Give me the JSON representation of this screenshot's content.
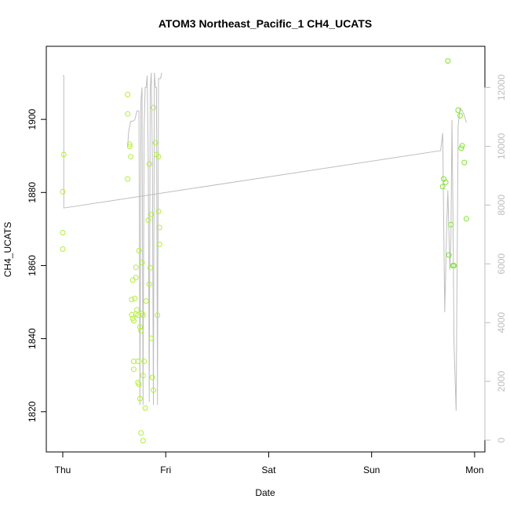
{
  "chart_data": {
    "type": "scatter",
    "title": "ATOM3 Northeast_Pacific_1 CH4_UCATS",
    "xlabel": "Date",
    "ylabel": "CH4_UCATS",
    "x_tick_labels": [
      "Thu",
      "Fri",
      "Sat",
      "Sun",
      "Mon"
    ],
    "x_ticks": [
      0,
      1,
      2,
      3,
      4
    ],
    "xlim": [
      -0.16,
      4.1
    ],
    "ylim": [
      1809,
      1920
    ],
    "y_ticks": [
      1820,
      1840,
      1860,
      1880,
      1900
    ],
    "y2_ticks": [
      0,
      2000,
      4000,
      6000,
      8000,
      10000,
      12000
    ],
    "y2lim": [
      -400,
      13400
    ],
    "colors": {
      "points": "#b3ee3a",
      "points_late": "#7fe52a",
      "line": "#bebebe",
      "axis": "#000000",
      "right_axis": "#bebebe"
    },
    "series": [
      {
        "type": "scatter",
        "axis": "left",
        "points": [
          [
            0.0,
            1880.2
          ],
          [
            0.01,
            1890.4
          ],
          [
            0.0,
            1869.0
          ],
          [
            0.0,
            1864.5
          ],
          [
            0.63,
            1906.8
          ],
          [
            0.63,
            1901.5
          ],
          [
            0.65,
            1893.2
          ],
          [
            0.65,
            1892.6
          ],
          [
            0.66,
            1889.8
          ],
          [
            0.63,
            1883.7
          ],
          [
            0.68,
            1856.0
          ],
          [
            0.71,
            1856.7
          ],
          [
            0.71,
            1859.5
          ],
          [
            0.67,
            1850.7
          ],
          [
            0.7,
            1851.0
          ],
          [
            0.67,
            1846.5
          ],
          [
            0.68,
            1845.5
          ],
          [
            0.69,
            1844.9
          ],
          [
            0.72,
            1847.9
          ],
          [
            0.71,
            1846.7
          ],
          [
            0.73,
            1846.4
          ],
          [
            0.74,
            1864.1
          ],
          [
            0.75,
            1843.2
          ],
          [
            0.76,
            1842.2
          ],
          [
            0.77,
            1860.8
          ],
          [
            0.77,
            1846.9
          ],
          [
            0.78,
            1846.4
          ],
          [
            0.69,
            1833.8
          ],
          [
            0.69,
            1831.6
          ],
          [
            0.73,
            1833.8
          ],
          [
            0.73,
            1828.0
          ],
          [
            0.74,
            1827.5
          ],
          [
            0.78,
            1829.9
          ],
          [
            0.79,
            1833.8
          ],
          [
            0.75,
            1823.6
          ],
          [
            0.8,
            1821.0
          ],
          [
            0.81,
            1850.3
          ],
          [
            0.76,
            1814.2
          ],
          [
            0.78,
            1812.1
          ],
          [
            0.83,
            1872.4
          ],
          [
            0.84,
            1887.8
          ],
          [
            0.86,
            1874.0
          ],
          [
            0.85,
            1859.4
          ],
          [
            0.84,
            1854.9
          ],
          [
            0.86,
            1840.1
          ],
          [
            0.87,
            1829.4
          ],
          [
            0.88,
            1825.9
          ],
          [
            0.88,
            1903.2
          ],
          [
            0.9,
            1893.6
          ],
          [
            0.91,
            1890.4
          ],
          [
            0.93,
            1889.8
          ],
          [
            0.93,
            1874.8
          ],
          [
            0.94,
            1870.4
          ],
          [
            0.94,
            1865.8
          ],
          [
            0.92,
            1846.4
          ],
          [
            3.69,
            1881.6
          ],
          [
            3.7,
            1883.7
          ],
          [
            3.72,
            1882.8
          ],
          [
            3.74,
            1916.0
          ],
          [
            3.77,
            1871.2
          ],
          [
            3.79,
            1860.0
          ],
          [
            3.8,
            1860.0
          ],
          [
            3.75,
            1862.9
          ],
          [
            3.84,
            1902.5
          ],
          [
            3.86,
            1901.0
          ],
          [
            3.87,
            1892.1
          ],
          [
            3.88,
            1892.8
          ],
          [
            3.9,
            1888.2
          ],
          [
            3.92,
            1872.8
          ]
        ]
      },
      {
        "type": "line",
        "axis": "right",
        "points": [
          [
            0.0,
            12400
          ],
          [
            0.01,
            12400
          ],
          [
            0.01,
            7900
          ],
          [
            3.67,
            9850
          ],
          [
            3.69,
            10450
          ],
          [
            3.71,
            4350
          ],
          [
            3.73,
            7300
          ],
          [
            3.74,
            8500
          ],
          [
            3.76,
            5800
          ],
          [
            3.77,
            6800
          ],
          [
            3.78,
            10900
          ],
          [
            3.79,
            7800
          ],
          [
            3.8,
            3300
          ],
          [
            3.82,
            1000
          ],
          [
            3.84,
            10700
          ],
          [
            3.86,
            11300
          ],
          [
            3.88,
            11200
          ],
          [
            3.9,
            11050
          ],
          [
            3.92,
            10800
          ]
        ]
      },
      {
        "type": "line",
        "axis": "right",
        "points": [
          [
            0.63,
            10000
          ],
          [
            0.64,
            10500
          ],
          [
            0.66,
            10850
          ],
          [
            0.68,
            10850
          ],
          [
            0.7,
            10900
          ],
          [
            0.72,
            11200
          ],
          [
            0.74,
            11200
          ],
          [
            0.75,
            1200
          ],
          [
            0.76,
            11600
          ],
          [
            0.77,
            12000
          ],
          [
            0.78,
            1200
          ],
          [
            0.79,
            10600
          ],
          [
            0.8,
            12000
          ],
          [
            0.81,
            12000
          ],
          [
            0.82,
            12400
          ],
          [
            0.83,
            9600
          ],
          [
            0.84,
            1300
          ],
          [
            0.85,
            12000
          ],
          [
            0.86,
            12500
          ],
          [
            0.87,
            9500
          ],
          [
            0.88,
            1200
          ],
          [
            0.89,
            12500
          ],
          [
            0.9,
            12000
          ],
          [
            0.91,
            12000
          ],
          [
            0.92,
            1200
          ],
          [
            0.93,
            12300
          ],
          [
            0.94,
            12300
          ],
          [
            0.95,
            12300
          ],
          [
            0.96,
            12500
          ]
        ]
      }
    ]
  }
}
